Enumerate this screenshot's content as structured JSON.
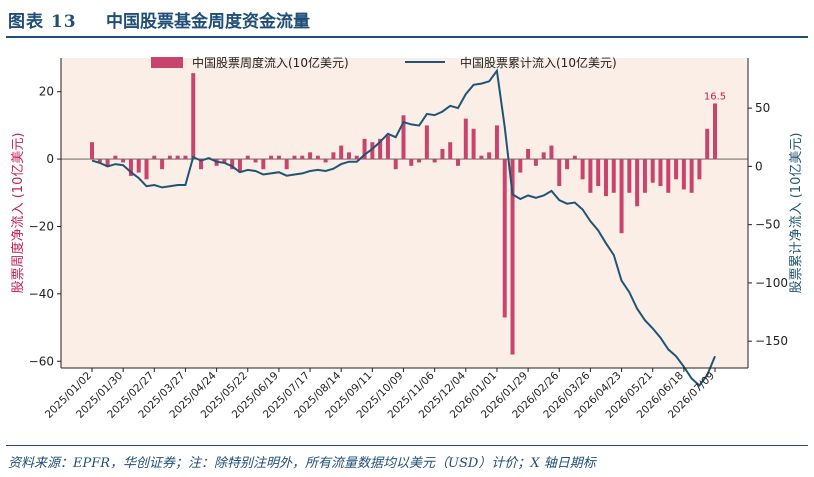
{
  "figure": {
    "number": "图表 13",
    "title": "中国股票基金周度资金流量",
    "source": "资料来源：EPFR，华创证券；注：除特别注明外，所有流量数据均以美元（USD）计价；X 轴日期标"
  },
  "colors": {
    "accent": "#1f4e79",
    "bar": "#c8446c",
    "line": "#1f5573",
    "plot_bg": "#fbeee7"
  },
  "chart_data": {
    "type": "bar",
    "legend": [
      "中国股票周度流入(10亿美元)",
      "中国股票累计流入(10亿美元)"
    ],
    "legend_position": "top-center",
    "ylabel_left": "股票周度净流入 (10亿美元)",
    "ylabel_right": "股票累计净流入 (10亿美元)",
    "ylim_left": [
      -62,
      30
    ],
    "ylim_right": [
      -173,
      93
    ],
    "yticks_left": [
      20,
      0,
      -20,
      -40,
      -60
    ],
    "yticks_right": [
      50,
      0,
      -50,
      -100,
      -150
    ],
    "xtick_labels": [
      "2025/01/02",
      "2025/01/30",
      "2025/02/27",
      "2025/03/27",
      "2025/04/24",
      "2025/05/22",
      "2025/06/19",
      "2025/07/17",
      "2025/08/14",
      "2025/09/11",
      "2025/10/09",
      "2025/11/06",
      "2025/12/04",
      "2026/01/01",
      "2026/01/29",
      "2026/02/26",
      "2026/03/26",
      "2026/04/23",
      "2026/05/21",
      "2026/06/18",
      "2026/07/09"
    ],
    "annotation": {
      "text": "16.5",
      "index": 80
    },
    "weekly_inflow": [
      5,
      -1,
      -2,
      1,
      -1,
      -5,
      -4,
      -6,
      1,
      -3,
      1,
      1,
      1,
      25.5,
      -3,
      0.5,
      -2,
      -1,
      -3,
      -4,
      1,
      -1,
      -3,
      1,
      1,
      -3,
      1,
      1,
      2,
      1,
      -1,
      2,
      4,
      2,
      1,
      6,
      5,
      6,
      7,
      -3,
      13,
      -2,
      -1,
      10,
      -1,
      3,
      5,
      -2,
      12,
      9,
      1,
      2,
      10,
      -47,
      -58,
      -4,
      3,
      -2,
      2,
      4,
      -8,
      -3,
      1,
      -6,
      -10,
      -8,
      -11,
      -10,
      -22,
      -10,
      -14,
      -10,
      -7,
      -8,
      -10,
      -6,
      -9,
      -10,
      -6,
      9,
      16.5
    ],
    "cumulative_inflow": [
      5,
      3,
      0,
      2,
      1,
      -5,
      -10,
      -17,
      -16,
      -18,
      -17,
      -16,
      -16,
      8,
      5,
      7,
      4,
      3,
      0,
      -5,
      -3,
      -4,
      -7,
      -6,
      -5,
      -8,
      -7,
      -6,
      -4,
      -3,
      -4,
      -2,
      2,
      4,
      4,
      10,
      15,
      21,
      28,
      25,
      38,
      36,
      35,
      45,
      44,
      47,
      52,
      50,
      62,
      70,
      71,
      73,
      82,
      34,
      -24,
      -28,
      -25,
      -27,
      -25,
      -21,
      -29,
      -32,
      -31,
      -37,
      -47,
      -55,
      -66,
      -76,
      -98,
      -108,
      -122,
      -132,
      -139,
      -147,
      -157,
      -163,
      -172,
      -182,
      -188,
      -179,
      -163
    ]
  }
}
